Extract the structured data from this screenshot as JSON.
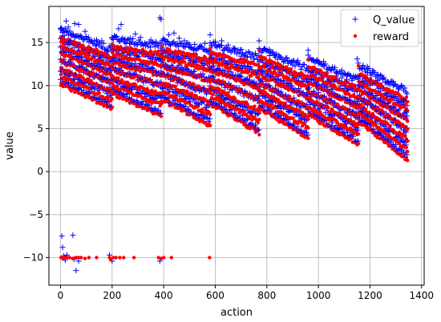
{
  "chart_data": {
    "type": "scatter",
    "xlabel": "action",
    "ylabel": "value",
    "xlim": [
      -45,
      1410
    ],
    "ylim": [
      -13.2,
      19.2
    ],
    "xticks": [
      0,
      200,
      400,
      600,
      800,
      1000,
      1200,
      1400
    ],
    "yticks": [
      -10,
      -5,
      0,
      5,
      10,
      15
    ],
    "xtick_labels": [
      "0",
      "200",
      "400",
      "600",
      "800",
      "1000",
      "1200",
      "1400"
    ],
    "ytick_labels": [
      "−10",
      "−5",
      "0",
      "5",
      "10",
      "15"
    ],
    "grid": true,
    "legend_position": "top-right",
    "series": [
      {
        "name": "Q_value",
        "marker": "+",
        "color": "#0000ff",
        "points": [
          [
            2,
            16.5
          ],
          [
            8,
            16.2
          ],
          [
            15,
            15.8
          ],
          [
            22,
            17.5
          ],
          [
            30,
            16.8
          ],
          [
            38,
            15.2
          ],
          [
            45,
            16.0
          ],
          [
            55,
            17.2
          ],
          [
            62,
            14.8
          ],
          [
            70,
            17.1
          ],
          [
            80,
            15.6
          ],
          [
            95,
            16.3
          ],
          [
            110,
            15.1
          ],
          [
            125,
            14.9
          ],
          [
            140,
            15.3
          ],
          [
            160,
            15.2
          ],
          [
            180,
            13.9
          ],
          [
            200,
            15.6
          ],
          [
            210,
            15.8
          ],
          [
            225,
            16.6
          ],
          [
            235,
            17.1
          ],
          [
            250,
            15.4
          ],
          [
            270,
            15.5
          ],
          [
            290,
            16.0
          ],
          [
            310,
            15.6
          ],
          [
            330,
            14.6
          ],
          [
            350,
            15.3
          ],
          [
            370,
            15.1
          ],
          [
            385,
            17.9
          ],
          [
            390,
            17.7
          ],
          [
            405,
            15.2
          ],
          [
            420,
            15.9
          ],
          [
            440,
            16.1
          ],
          [
            460,
            15.5
          ],
          [
            480,
            15.2
          ],
          [
            500,
            14.8
          ],
          [
            520,
            14.3
          ],
          [
            540,
            14.5
          ],
          [
            560,
            14.9
          ],
          [
            580,
            15.9
          ],
          [
            600,
            15.1
          ],
          [
            625,
            15.2
          ],
          [
            650,
            14.7
          ],
          [
            675,
            13.9
          ],
          [
            700,
            13.4
          ],
          [
            725,
            13.3
          ],
          [
            750,
            13.1
          ],
          [
            770,
            15.2
          ],
          [
            790,
            14.3
          ],
          [
            810,
            14.2
          ],
          [
            830,
            13.5
          ],
          [
            850,
            13.3
          ],
          [
            880,
            12.9
          ],
          [
            900,
            12.4
          ],
          [
            920,
            12.9
          ],
          [
            960,
            14.1
          ],
          [
            980,
            12.9
          ],
          [
            1000,
            12.8
          ],
          [
            1020,
            12.8
          ],
          [
            1050,
            11.9
          ],
          [
            1070,
            11.4
          ],
          [
            1090,
            10.9
          ],
          [
            1110,
            10.7
          ],
          [
            1130,
            10.6
          ],
          [
            1150,
            13.1
          ],
          [
            1170,
            12.0
          ],
          [
            1190,
            12.2
          ],
          [
            1210,
            11.4
          ],
          [
            1230,
            10.6
          ],
          [
            1250,
            10.8
          ],
          [
            1270,
            10.3
          ],
          [
            1290,
            10.0
          ],
          [
            1310,
            9.6
          ],
          [
            1330,
            8.4
          ],
          [
            1340,
            6.9
          ],
          [
            5,
            -7.5
          ],
          [
            8,
            -8.8
          ],
          [
            12,
            -9.8
          ],
          [
            18,
            -10.3
          ],
          [
            25,
            -9.7
          ],
          [
            48,
            -7.4
          ],
          [
            52,
            -10.2
          ],
          [
            60,
            -11.5
          ],
          [
            70,
            -10.4
          ],
          [
            190,
            -9.7
          ],
          [
            200,
            -10.4
          ],
          [
            385,
            -10.4
          ]
        ]
      },
      {
        "name": "reward",
        "marker": "o",
        "color": "#ff0000",
        "points": [
          [
            2,
            -10.0
          ],
          [
            8,
            -10.1
          ],
          [
            15,
            -10.0
          ],
          [
            25,
            -10.0
          ],
          [
            35,
            -10.0
          ],
          [
            48,
            -10.1
          ],
          [
            60,
            -10.0
          ],
          [
            70,
            -10.0
          ],
          [
            80,
            -10.0
          ],
          [
            95,
            -10.1
          ],
          [
            110,
            -10.0
          ],
          [
            140,
            -10.0
          ],
          [
            190,
            -10.0
          ],
          [
            195,
            -10.2
          ],
          [
            205,
            -10.0
          ],
          [
            215,
            -10.0
          ],
          [
            230,
            -10.0
          ],
          [
            245,
            -10.0
          ],
          [
            285,
            -10.0
          ],
          [
            380,
            -10.0
          ],
          [
            390,
            -10.1
          ],
          [
            400,
            -10.0
          ],
          [
            430,
            -10.0
          ],
          [
            578,
            -10.0
          ],
          [
            2,
            15.1
          ],
          [
            10,
            14.9
          ],
          [
            20,
            14.2
          ],
          [
            40,
            13.5
          ],
          [
            60,
            14.8
          ],
          [
            80,
            14.0
          ],
          [
            100,
            13.8
          ],
          [
            120,
            13.9
          ],
          [
            140,
            14.2
          ],
          [
            170,
            13.7
          ],
          [
            200,
            14.8
          ],
          [
            220,
            14.2
          ],
          [
            240,
            14.0
          ],
          [
            260,
            13.8
          ],
          [
            290,
            13.7
          ],
          [
            320,
            13.5
          ],
          [
            350,
            13.6
          ],
          [
            380,
            14.0
          ],
          [
            395,
            14.6
          ],
          [
            420,
            14.1
          ],
          [
            450,
            13.7
          ],
          [
            480,
            13.2
          ],
          [
            510,
            13.0
          ],
          [
            540,
            12.8
          ],
          [
            570,
            12.6
          ],
          [
            580,
            14.3
          ],
          [
            600,
            13.1
          ],
          [
            630,
            12.9
          ],
          [
            660,
            12.5
          ],
          [
            690,
            12.2
          ],
          [
            720,
            11.9
          ],
          [
            750,
            11.6
          ],
          [
            770,
            14.1
          ],
          [
            790,
            12.4
          ],
          [
            820,
            12.1
          ],
          [
            850,
            11.8
          ],
          [
            880,
            11.5
          ],
          [
            910,
            11.1
          ],
          [
            940,
            10.8
          ],
          [
            960,
            13.0
          ],
          [
            990,
            11.6
          ],
          [
            1020,
            11.1
          ],
          [
            1050,
            10.7
          ],
          [
            1080,
            10.3
          ],
          [
            1110,
            9.9
          ],
          [
            1140,
            9.5
          ],
          [
            1155,
            12.3
          ],
          [
            1180,
            11.1
          ],
          [
            1210,
            10.5
          ],
          [
            1240,
            9.9
          ],
          [
            1270,
            9.4
          ],
          [
            1300,
            9.0
          ],
          [
            1320,
            8.7
          ],
          [
            1340,
            7.8
          ]
        ]
      }
    ],
    "dense_bands": [
      {
        "x": [
          0,
          200
        ],
        "top": [
          16.5,
          14.2
        ],
        "bottom": [
          10.6,
          7.7
        ]
      },
      {
        "x": [
          200,
          390
        ],
        "top": [
          15.5,
          14.6
        ],
        "bottom": [
          9.5,
          6.9
        ]
      },
      {
        "x": [
          390,
          580
        ],
        "top": [
          15.2,
          14.1
        ],
        "bottom": [
          8.8,
          5.8
        ]
      },
      {
        "x": [
          580,
          770
        ],
        "top": [
          14.8,
          13.3
        ],
        "bottom": [
          8.3,
          4.9
        ]
      },
      {
        "x": [
          770,
          960
        ],
        "top": [
          14.2,
          11.9
        ],
        "bottom": [
          7.8,
          4.3
        ]
      },
      {
        "x": [
          960,
          1155
        ],
        "top": [
          13.2,
          10.6
        ],
        "bottom": [
          7.0,
          3.6
        ]
      },
      {
        "x": [
          1155,
          1345
        ],
        "top": [
          12.3,
          9.3
        ],
        "bottom": [
          6.3,
          1.8
        ]
      }
    ]
  }
}
